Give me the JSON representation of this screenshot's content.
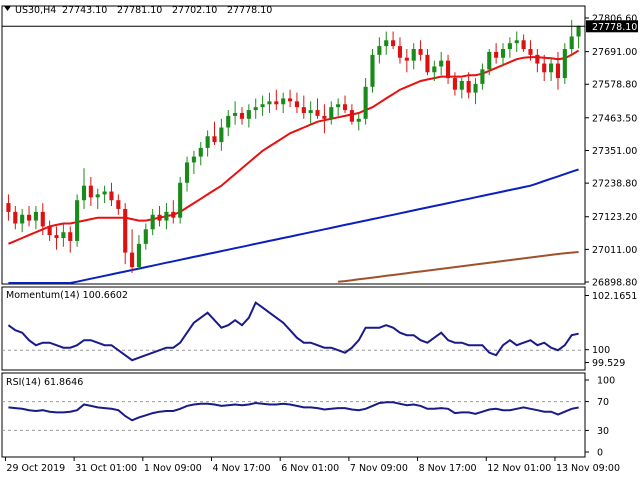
{
  "header": {
    "symbol": "US30,H4",
    "open": "27743.10",
    "high": "27781.10",
    "low": "27702.10",
    "close": "27778.10"
  },
  "main_axis": {
    "ticks": [
      "27806.60",
      "27691.00",
      "27578.80",
      "27463.50",
      "27351.00",
      "27238.80",
      "27123.20",
      "27011.00",
      "26898.80"
    ],
    "current_price": "27778.10",
    "current_price_color": "#000000"
  },
  "momentum": {
    "label": "Momentum(14) 100.6602",
    "ticks": [
      "102.1651",
      "100",
      "99.529"
    ]
  },
  "rsi": {
    "label": "RSI(14) 61.8646",
    "ticks": [
      "100",
      "70",
      "30",
      "0"
    ]
  },
  "time_axis": {
    "labels": [
      "29 Oct 2019",
      "31 Oct 01:00",
      "1 Nov 09:00",
      "4 Nov 17:00",
      "6 Nov 01:00",
      "7 Nov 09:00",
      "8 Nov 17:00",
      "12 Nov 01:00",
      "13 Nov 09:00"
    ]
  },
  "colors": {
    "bull": "#1a8a1a",
    "bear": "#dd1111",
    "ma_fast": "#e81010",
    "ma_mid": "#0a1fbf",
    "ma_slow": "#a0502a",
    "indicator_line": "#1a1a8a",
    "frame": "#000000"
  },
  "chart_data": [
    {
      "type": "candlestick",
      "title": "US30,H4",
      "ylim": [
        26898.8,
        27806.6
      ],
      "candles": [
        [
          27170,
          27200,
          27110,
          27140
        ],
        [
          27140,
          27160,
          27080,
          27100
        ],
        [
          27100,
          27150,
          27070,
          27130
        ],
        [
          27130,
          27160,
          27090,
          27110
        ],
        [
          27110,
          27160,
          27080,
          27140
        ],
        [
          27140,
          27170,
          27060,
          27090
        ],
        [
          27090,
          27110,
          27040,
          27060
        ],
        [
          27060,
          27090,
          27010,
          27050
        ],
        [
          27050,
          27100,
          27020,
          27070
        ],
        [
          27070,
          27090,
          27000,
          27040
        ],
        [
          27040,
          27200,
          27020,
          27180
        ],
        [
          27180,
          27290,
          27150,
          27230
        ],
        [
          27230,
          27260,
          27160,
          27190
        ],
        [
          27190,
          27220,
          27150,
          27200
        ],
        [
          27200,
          27230,
          27170,
          27210
        ],
        [
          27210,
          27240,
          27160,
          27180
        ],
        [
          27180,
          27200,
          27130,
          27150
        ],
        [
          27150,
          27170,
          26960,
          27000
        ],
        [
          27000,
          27080,
          26930,
          26950
        ],
        [
          26950,
          27060,
          26940,
          27030
        ],
        [
          27030,
          27100,
          27010,
          27080
        ],
        [
          27080,
          27150,
          27060,
          27130
        ],
        [
          27130,
          27160,
          27090,
          27110
        ],
        [
          27110,
          27170,
          27080,
          27140
        ],
        [
          27140,
          27180,
          27100,
          27120
        ],
        [
          27120,
          27260,
          27100,
          27240
        ],
        [
          27240,
          27330,
          27210,
          27310
        ],
        [
          27310,
          27350,
          27270,
          27330
        ],
        [
          27330,
          27380,
          27300,
          27360
        ],
        [
          27360,
          27420,
          27330,
          27400
        ],
        [
          27400,
          27450,
          27370,
          27380
        ],
        [
          27380,
          27460,
          27350,
          27430
        ],
        [
          27430,
          27490,
          27400,
          27470
        ],
        [
          27470,
          27520,
          27440,
          27480
        ],
        [
          27480,
          27500,
          27440,
          27460
        ],
        [
          27460,
          27510,
          27430,
          27490
        ],
        [
          27490,
          27530,
          27460,
          27500
        ],
        [
          27500,
          27540,
          27470,
          27510
        ],
        [
          27510,
          27550,
          27480,
          27520
        ],
        [
          27520,
          27560,
          27490,
          27510
        ],
        [
          27510,
          27550,
          27480,
          27530
        ],
        [
          27530,
          27560,
          27500,
          27520
        ],
        [
          27520,
          27550,
          27480,
          27500
        ],
        [
          27500,
          27540,
          27460,
          27480
        ],
        [
          27480,
          27520,
          27440,
          27490
        ],
        [
          27490,
          27530,
          27460,
          27470
        ],
        [
          27470,
          27510,
          27410,
          27460
        ],
        [
          27460,
          27520,
          27440,
          27500
        ],
        [
          27500,
          27530,
          27470,
          27510
        ],
        [
          27510,
          27540,
          27480,
          27490
        ],
        [
          27490,
          27510,
          27440,
          27450
        ],
        [
          27450,
          27480,
          27420,
          27460
        ],
        [
          27460,
          27600,
          27440,
          27570
        ],
        [
          27570,
          27700,
          27550,
          27680
        ],
        [
          27680,
          27740,
          27650,
          27710
        ],
        [
          27710,
          27760,
          27680,
          27730
        ],
        [
          27730,
          27760,
          27700,
          27710
        ],
        [
          27710,
          27740,
          27650,
          27670
        ],
        [
          27670,
          27700,
          27620,
          27660
        ],
        [
          27660,
          27720,
          27630,
          27700
        ],
        [
          27700,
          27730,
          27660,
          27680
        ],
        [
          27680,
          27700,
          27610,
          27620
        ],
        [
          27620,
          27660,
          27590,
          27640
        ],
        [
          27640,
          27690,
          27610,
          27660
        ],
        [
          27660,
          27680,
          27580,
          27600
        ],
        [
          27600,
          27620,
          27540,
          27560
        ],
        [
          27560,
          27600,
          27530,
          27590
        ],
        [
          27590,
          27620,
          27530,
          27550
        ],
        [
          27550,
          27600,
          27510,
          27580
        ],
        [
          27580,
          27650,
          27560,
          27630
        ],
        [
          27630,
          27700,
          27610,
          27690
        ],
        [
          27690,
          27720,
          27650,
          27670
        ],
        [
          27670,
          27720,
          27640,
          27700
        ],
        [
          27700,
          27740,
          27670,
          27720
        ],
        [
          27720,
          27760,
          27690,
          27730
        ],
        [
          27730,
          27750,
          27690,
          27700
        ],
        [
          27700,
          27730,
          27660,
          27680
        ],
        [
          27680,
          27700,
          27620,
          27650
        ],
        [
          27650,
          27680,
          27590,
          27620
        ],
        [
          27620,
          27670,
          27590,
          27650
        ],
        [
          27650,
          27690,
          27560,
          27600
        ],
        [
          27600,
          27720,
          27580,
          27700
        ],
        [
          27700,
          27800,
          27680,
          27743
        ],
        [
          27743,
          27781,
          27702,
          27778
        ]
      ],
      "ma_fast": [
        27030,
        27040,
        27050,
        27060,
        27070,
        27080,
        27090,
        27095,
        27100,
        27100,
        27105,
        27110,
        27115,
        27120,
        27120,
        27120,
        27120,
        27120,
        27115,
        27110,
        27110,
        27115,
        27120,
        27125,
        27130,
        27140,
        27155,
        27170,
        27185,
        27200,
        27215,
        27230,
        27250,
        27270,
        27290,
        27310,
        27330,
        27350,
        27365,
        27380,
        27395,
        27410,
        27420,
        27430,
        27440,
        27450,
        27455,
        27460,
        27465,
        27470,
        27475,
        27480,
        27490,
        27500,
        27515,
        27530,
        27545,
        27560,
        27570,
        27580,
        27590,
        27595,
        27600,
        27605,
        27605,
        27605,
        27605,
        27610,
        27610,
        27615,
        27625,
        27635,
        27645,
        27655,
        27665,
        27670,
        27672,
        27672,
        27670,
        27668,
        27665,
        27668,
        27680,
        27695
      ],
      "ma_mid": [
        26850,
        26855,
        26860,
        26865,
        26870,
        26875,
        26880,
        26885,
        26890,
        26895,
        26900,
        26905,
        26910,
        26915,
        26920,
        26925,
        26930,
        26935,
        26940,
        26945,
        26950,
        26955,
        26960,
        26965,
        26970,
        26975,
        26980,
        26985,
        26990,
        26995,
        27000,
        27005,
        27010,
        27015,
        27020,
        27025,
        27030,
        27035,
        27040,
        27045,
        27050,
        27055,
        27060,
        27065,
        27070,
        27075,
        27080,
        27085,
        27090,
        27095,
        27100,
        27105,
        27110,
        27115,
        27120,
        27125,
        27130,
        27135,
        27140,
        27145,
        27150,
        27155,
        27160,
        27165,
        27170,
        27175,
        27180,
        27185,
        27190,
        27195,
        27200,
        27205,
        27210,
        27215,
        27220,
        27225,
        27230,
        27238,
        27246,
        27254,
        27262,
        27270,
        27278,
        27286
      ],
      "ma_slow": [
        null,
        null,
        null,
        null,
        null,
        null,
        null,
        null,
        null,
        null,
        null,
        null,
        null,
        null,
        null,
        null,
        null,
        null,
        null,
        null,
        null,
        null,
        null,
        null,
        null,
        null,
        null,
        null,
        null,
        null,
        null,
        null,
        null,
        null,
        null,
        null,
        null,
        null,
        null,
        null,
        null,
        null,
        null,
        null,
        null,
        null,
        null,
        null,
        26900,
        26902,
        26905,
        26908,
        26911,
        26914,
        26917,
        26920,
        26923,
        26926,
        26929,
        26932,
        26935,
        26938,
        26941,
        26944,
        26947,
        26950,
        26953,
        26956,
        26959,
        26962,
        26965,
        26968,
        26971,
        26974,
        26977,
        26980,
        26983,
        26986,
        26989,
        26992,
        26995,
        26998,
        27000,
        27002
      ]
    },
    {
      "type": "line",
      "title": "Momentum(14) 100.6602",
      "ylim": [
        99.529,
        102.1651
      ],
      "values": [
        101.0,
        100.8,
        100.7,
        100.4,
        100.2,
        100.3,
        100.3,
        100.2,
        100.1,
        100.1,
        100.2,
        100.4,
        100.4,
        100.3,
        100.2,
        100.2,
        100.0,
        99.8,
        99.6,
        99.7,
        99.8,
        99.9,
        100.0,
        100.1,
        100.1,
        100.3,
        100.7,
        101.1,
        101.3,
        101.5,
        101.2,
        100.9,
        101.0,
        101.2,
        101.0,
        101.3,
        101.9,
        101.7,
        101.5,
        101.3,
        101.1,
        100.8,
        100.5,
        100.3,
        100.3,
        100.2,
        100.1,
        100.1,
        100.0,
        99.9,
        100.1,
        100.4,
        100.9,
        100.9,
        100.9,
        101.0,
        100.9,
        100.7,
        100.6,
        100.6,
        100.4,
        100.3,
        100.5,
        100.7,
        100.4,
        100.3,
        100.3,
        100.2,
        100.2,
        100.2,
        99.9,
        99.8,
        100.2,
        100.4,
        100.2,
        100.3,
        100.4,
        100.2,
        100.3,
        100.1,
        100.0,
        100.2,
        100.6,
        100.66
      ]
    },
    {
      "type": "line",
      "title": "RSI(14) 61.8646",
      "ylim": [
        0,
        100
      ],
      "levels": [
        70,
        30
      ],
      "values": [
        62,
        61,
        60,
        58,
        57,
        58,
        56,
        55,
        55,
        56,
        58,
        66,
        64,
        62,
        61,
        60,
        58,
        50,
        44,
        48,
        51,
        54,
        56,
        57,
        57,
        60,
        64,
        66,
        67,
        67,
        66,
        64,
        65,
        66,
        65,
        66,
        68,
        67,
        66,
        66,
        67,
        66,
        64,
        62,
        62,
        61,
        59,
        60,
        61,
        61,
        59,
        58,
        60,
        64,
        68,
        69,
        69,
        67,
        65,
        66,
        64,
        60,
        60,
        61,
        60,
        54,
        55,
        55,
        53,
        56,
        59,
        60,
        58,
        58,
        60,
        62,
        60,
        58,
        56,
        56,
        52,
        56,
        60,
        61.86
      ]
    }
  ]
}
